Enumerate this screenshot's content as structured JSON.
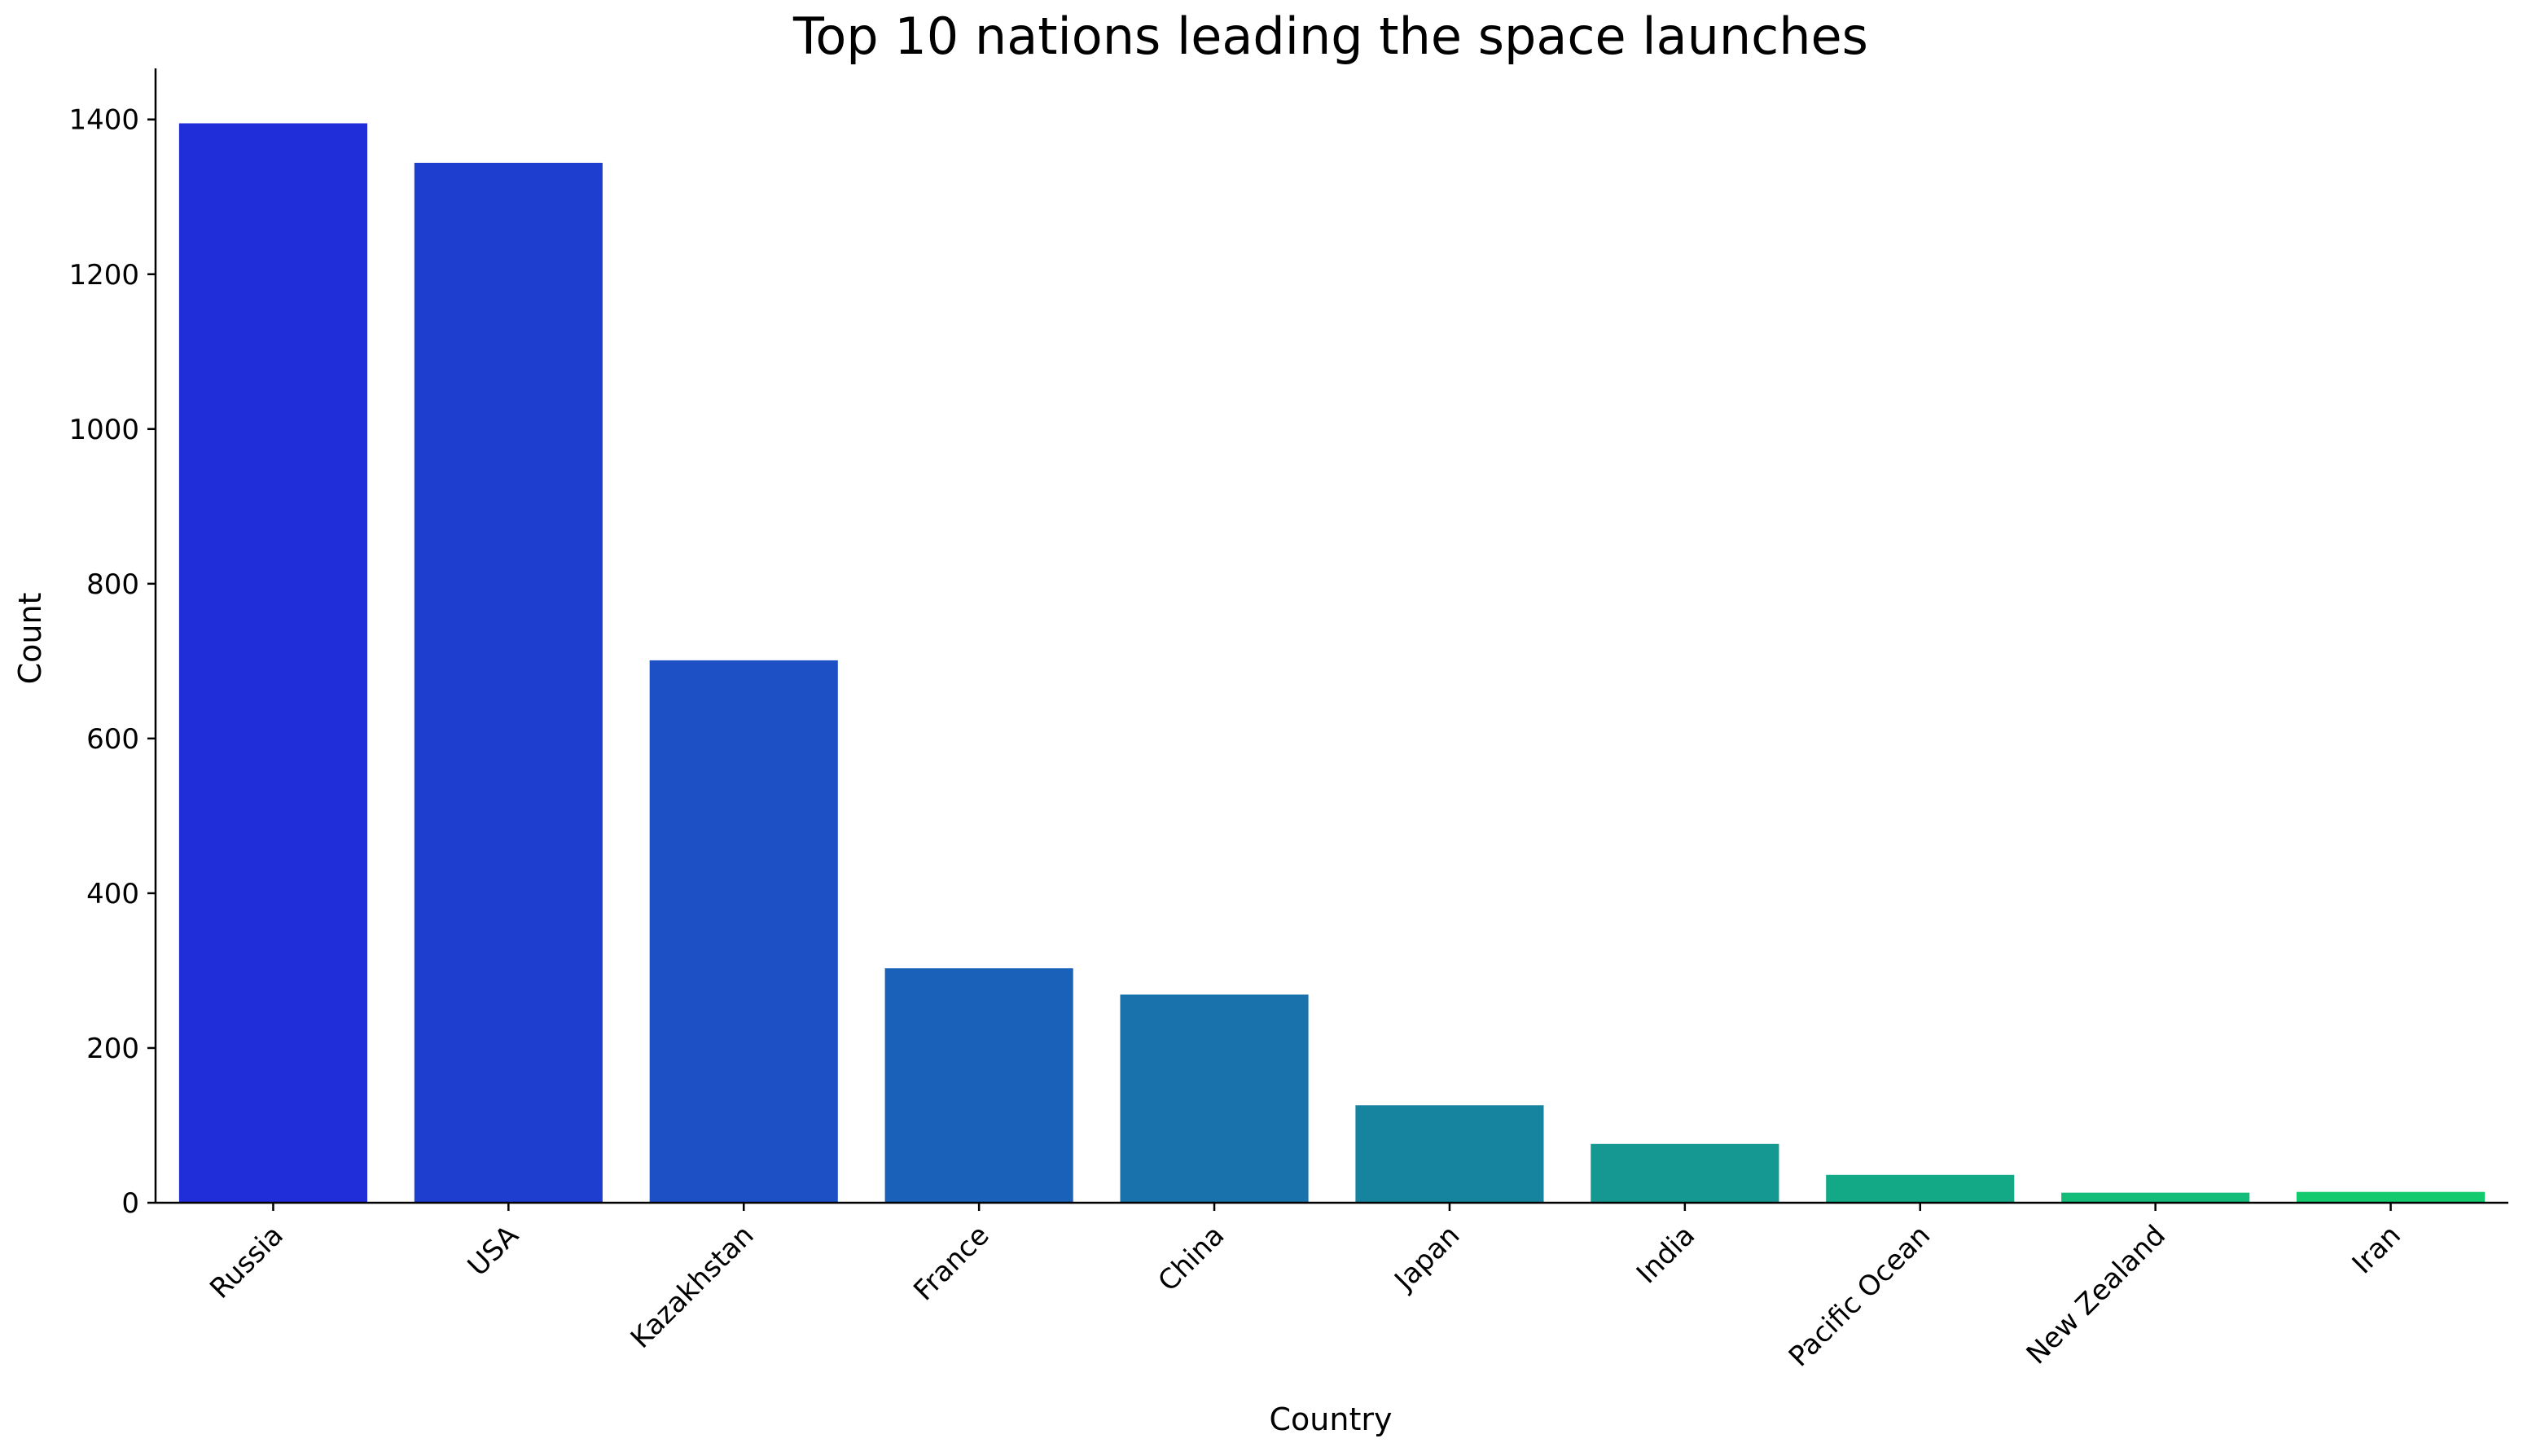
{
  "chart_data": {
    "type": "bar",
    "title": "Top 10 nations leading the space launches",
    "xlabel": "Country",
    "ylabel": "Count",
    "categories": [
      "Russia",
      "USA",
      "Kazakhstan",
      "France",
      "China",
      "Japan",
      "India",
      "Pacific Ocean",
      "New Zealand",
      "Iran"
    ],
    "values": [
      1395,
      1344,
      701,
      303,
      269,
      126,
      76,
      36,
      13,
      14
    ],
    "colors": [
      "#1f2ed8",
      "#1e3ecf",
      "#1c50c4",
      "#1a62b9",
      "#1972ab",
      "#17849f",
      "#159792",
      "#14a986",
      "#13bc79",
      "#13cb6e"
    ],
    "ylim": [
      0,
      1466
    ],
    "yticks": [
      "0",
      "200",
      "400",
      "600",
      "800",
      "1000",
      "1200",
      "1400"
    ],
    "ytick_values": [
      0,
      200,
      400,
      600,
      800,
      1000,
      1200,
      1400
    ],
    "grid": false,
    "legend": false
  }
}
